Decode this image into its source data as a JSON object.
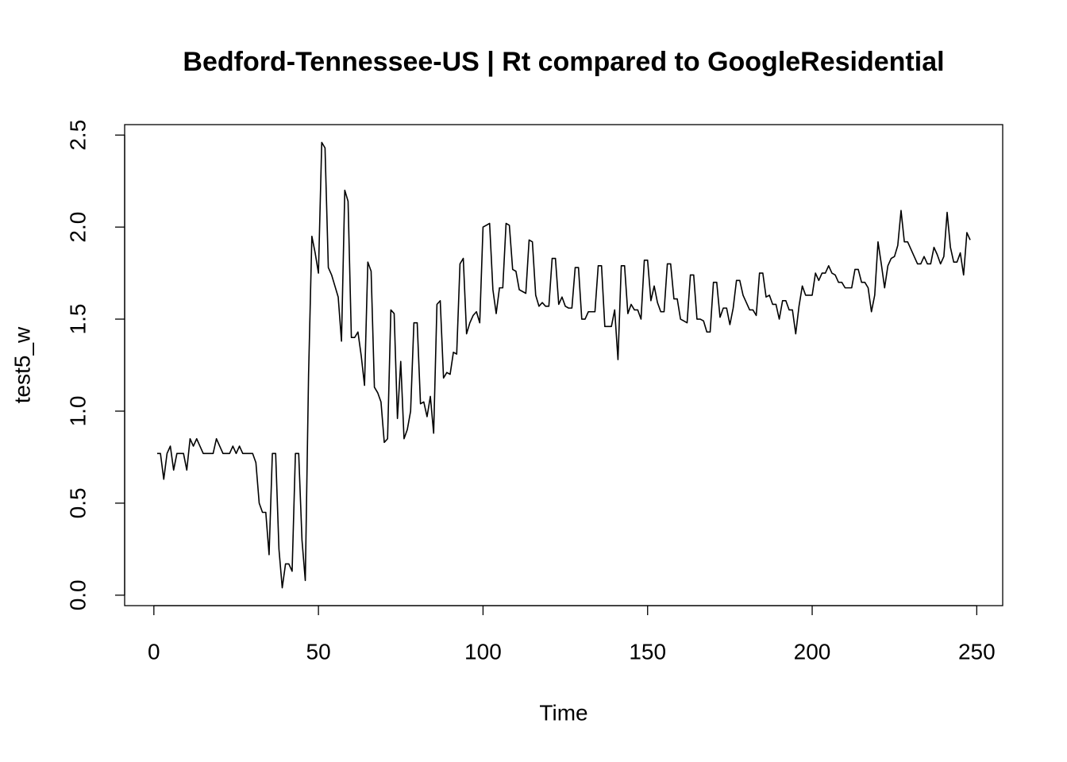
{
  "chart_data": {
    "type": "line",
    "title": "Bedford-Tennessee-US | Rt compared to GoogleResidential",
    "x_label": "Time",
    "y_label": "test5_w",
    "x": [
      1,
      2,
      3,
      4,
      5,
      6,
      7,
      8,
      9,
      10,
      11,
      12,
      13,
      14,
      15,
      16,
      17,
      18,
      19,
      20,
      21,
      22,
      23,
      24,
      25,
      26,
      27,
      28,
      29,
      30,
      31,
      32,
      33,
      34,
      35,
      36,
      37,
      38,
      39,
      40,
      41,
      42,
      43,
      44,
      45,
      46,
      47,
      48,
      49,
      50,
      51,
      52,
      53,
      54,
      55,
      56,
      57,
      58,
      59,
      60,
      61,
      62,
      63,
      64,
      65,
      66,
      67,
      68,
      69,
      70,
      71,
      72,
      73,
      74,
      75,
      76,
      77,
      78,
      79,
      80,
      81,
      82,
      83,
      84,
      85,
      86,
      87,
      88,
      89,
      90,
      91,
      92,
      93,
      94,
      95,
      96,
      97,
      98,
      99,
      100,
      101,
      102,
      103,
      104,
      105,
      106,
      107,
      108,
      109,
      110,
      111,
      112,
      113,
      114,
      115,
      116,
      117,
      118,
      119,
      120,
      121,
      122,
      123,
      124,
      125,
      126,
      127,
      128,
      129,
      130,
      131,
      132,
      133,
      134,
      135,
      136,
      137,
      138,
      139,
      140,
      141,
      142,
      143,
      144,
      145,
      146,
      147,
      148,
      149,
      150,
      151,
      152,
      153,
      154,
      155,
      156,
      157,
      158,
      159,
      160,
      161,
      162,
      163,
      164,
      165,
      166,
      167,
      168,
      169,
      170,
      171,
      172,
      173,
      174,
      175,
      176,
      177,
      178,
      179,
      180,
      181,
      182,
      183,
      184,
      185,
      186,
      187,
      188,
      189,
      190,
      191,
      192,
      193,
      194,
      195,
      196,
      197,
      198,
      199,
      200,
      201,
      202,
      203,
      204,
      205,
      206,
      207,
      208,
      209,
      210,
      211,
      212,
      213,
      214,
      215,
      216,
      217,
      218,
      219,
      220,
      221,
      222,
      223,
      224,
      225,
      226,
      227,
      228,
      229,
      230,
      231,
      232,
      233,
      234,
      235,
      236,
      237,
      238,
      239,
      240,
      241,
      242,
      243,
      244,
      245,
      246,
      247,
      248
    ],
    "values": [
      0.77,
      0.77,
      0.63,
      0.77,
      0.81,
      0.68,
      0.77,
      0.77,
      0.77,
      0.68,
      0.85,
      0.81,
      0.85,
      0.81,
      0.77,
      0.77,
      0.77,
      0.77,
      0.85,
      0.81,
      0.77,
      0.77,
      0.77,
      0.81,
      0.77,
      0.81,
      0.77,
      0.77,
      0.77,
      0.77,
      0.72,
      0.5,
      0.45,
      0.45,
      0.22,
      0.77,
      0.77,
      0.25,
      0.04,
      0.17,
      0.17,
      0.13,
      0.77,
      0.77,
      0.3,
      0.08,
      1.2,
      1.95,
      1.86,
      1.75,
      2.46,
      2.43,
      1.78,
      1.74,
      1.68,
      1.62,
      1.38,
      2.2,
      2.14,
      1.4,
      1.4,
      1.43,
      1.3,
      1.14,
      1.81,
      1.76,
      1.13,
      1.1,
      1.05,
      0.83,
      0.85,
      1.55,
      1.53,
      0.96,
      1.27,
      0.85,
      0.9,
      1.0,
      1.48,
      1.48,
      1.04,
      1.05,
      0.97,
      1.08,
      0.88,
      1.58,
      1.6,
      1.18,
      1.21,
      1.2,
      1.32,
      1.31,
      1.8,
      1.83,
      1.42,
      1.48,
      1.52,
      1.54,
      1.48,
      2.0,
      2.01,
      2.02,
      1.66,
      1.53,
      1.67,
      1.67,
      2.02,
      2.01,
      1.77,
      1.76,
      1.66,
      1.65,
      1.64,
      1.93,
      1.92,
      1.63,
      1.57,
      1.59,
      1.57,
      1.57,
      1.83,
      1.83,
      1.58,
      1.62,
      1.57,
      1.56,
      1.56,
      1.78,
      1.78,
      1.5,
      1.5,
      1.54,
      1.54,
      1.54,
      1.79,
      1.79,
      1.46,
      1.46,
      1.46,
      1.55,
      1.28,
      1.79,
      1.79,
      1.53,
      1.58,
      1.55,
      1.55,
      1.5,
      1.82,
      1.82,
      1.6,
      1.68,
      1.59,
      1.54,
      1.54,
      1.8,
      1.8,
      1.61,
      1.61,
      1.5,
      1.49,
      1.48,
      1.74,
      1.74,
      1.5,
      1.5,
      1.49,
      1.43,
      1.43,
      1.7,
      1.7,
      1.51,
      1.56,
      1.56,
      1.47,
      1.56,
      1.71,
      1.71,
      1.63,
      1.59,
      1.55,
      1.55,
      1.52,
      1.75,
      1.75,
      1.62,
      1.63,
      1.58,
      1.58,
      1.5,
      1.6,
      1.6,
      1.55,
      1.55,
      1.42,
      1.57,
      1.68,
      1.63,
      1.63,
      1.63,
      1.75,
      1.71,
      1.75,
      1.75,
      1.79,
      1.75,
      1.74,
      1.7,
      1.7,
      1.67,
      1.67,
      1.67,
      1.77,
      1.77,
      1.7,
      1.7,
      1.67,
      1.54,
      1.63,
      1.92,
      1.8,
      1.67,
      1.79,
      1.83,
      1.84,
      1.9,
      2.09,
      1.92,
      1.92,
      1.88,
      1.84,
      1.8,
      1.8,
      1.84,
      1.8,
      1.8,
      1.89,
      1.85,
      1.8,
      1.84,
      2.08,
      1.89,
      1.81,
      1.81,
      1.86,
      1.74,
      1.97,
      1.93
    ],
    "color": "#000000",
    "xlim": [
      -8.88,
      257.88
    ],
    "ylim": [
      -0.0568,
      2.5568
    ],
    "xticks": [
      0,
      50,
      100,
      150,
      200,
      250
    ],
    "yticks": [
      {
        "value": 0,
        "label": "0.0"
      },
      0.5,
      {
        "value": 1,
        "label": "1.0"
      },
      1.5,
      {
        "value": 2,
        "label": "2.0"
      },
      2.5
    ],
    "grid": false
  }
}
